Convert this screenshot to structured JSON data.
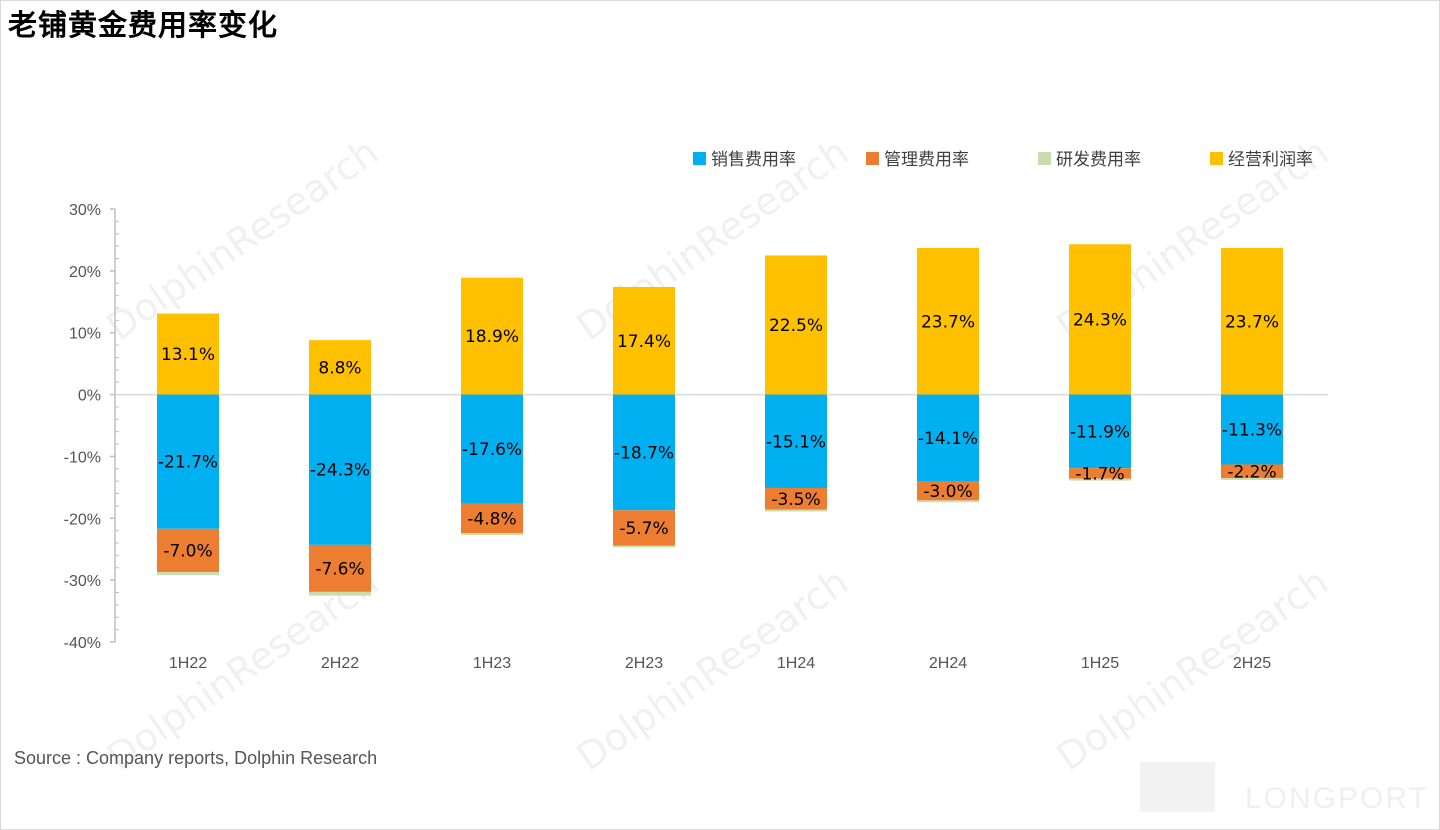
{
  "title": "老铺黄金费用率变化",
  "source": "Source : Company reports, Dolphin Research",
  "watermark": "DolphinResearch",
  "logo_text": "LONGPORT",
  "colors": {
    "sales": "#00b0f0",
    "admin": "#ed7d31",
    "rnd": "#c9dcae",
    "op_margin": "#ffc000",
    "axis": "#bfbfbf"
  },
  "chart_data": {
    "type": "bar",
    "stacked": true,
    "categories": [
      "1H22",
      "2H22",
      "1H23",
      "2H23",
      "1H24",
      "2H24",
      "1H25",
      "2H25"
    ],
    "ylim": [
      -40,
      30
    ],
    "yticks": [
      "30%",
      "20%",
      "10%",
      "0%",
      "-10%",
      "-20%",
      "-30%",
      "-40%"
    ],
    "ytick_values": [
      30,
      20,
      10,
      0,
      -10,
      -20,
      -30,
      -40
    ],
    "legend_position": "top-right",
    "series": [
      {
        "name": "销售费用率",
        "key": "sales",
        "values": [
          -21.7,
          -24.3,
          -17.6,
          -18.7,
          -15.1,
          -14.1,
          -11.9,
          -11.3
        ],
        "labels": [
          "-21.7%",
          "-24.3%",
          "-17.6%",
          "-18.7%",
          "-15.1%",
          "-14.1%",
          "-11.9%",
          "-11.3%"
        ]
      },
      {
        "name": "管理费用率",
        "key": "admin",
        "values": [
          -7.0,
          -7.6,
          -4.8,
          -5.7,
          -3.5,
          -3.0,
          -1.7,
          -2.2
        ],
        "labels": [
          "-7.0%",
          "-7.6%",
          "-4.8%",
          "-5.7%",
          "-3.5%",
          "-3.0%",
          "-1.7%",
          "-2.2%"
        ]
      },
      {
        "name": "研发费用率",
        "key": "rnd",
        "values": [
          -0.5,
          -0.6,
          -0.3,
          -0.3,
          -0.3,
          -0.3,
          -0.3,
          -0.3
        ],
        "labels": [
          "",
          "",
          "",
          "",
          "",
          "",
          "",
          ""
        ]
      },
      {
        "name": "经营利润率",
        "key": "op_margin",
        "values": [
          13.1,
          8.8,
          18.9,
          17.4,
          22.5,
          23.7,
          24.3,
          23.7
        ],
        "labels": [
          "13.1%",
          "8.8%",
          "18.9%",
          "17.4%",
          "22.5%",
          "23.7%",
          "24.3%",
          "23.7%"
        ]
      }
    ]
  }
}
